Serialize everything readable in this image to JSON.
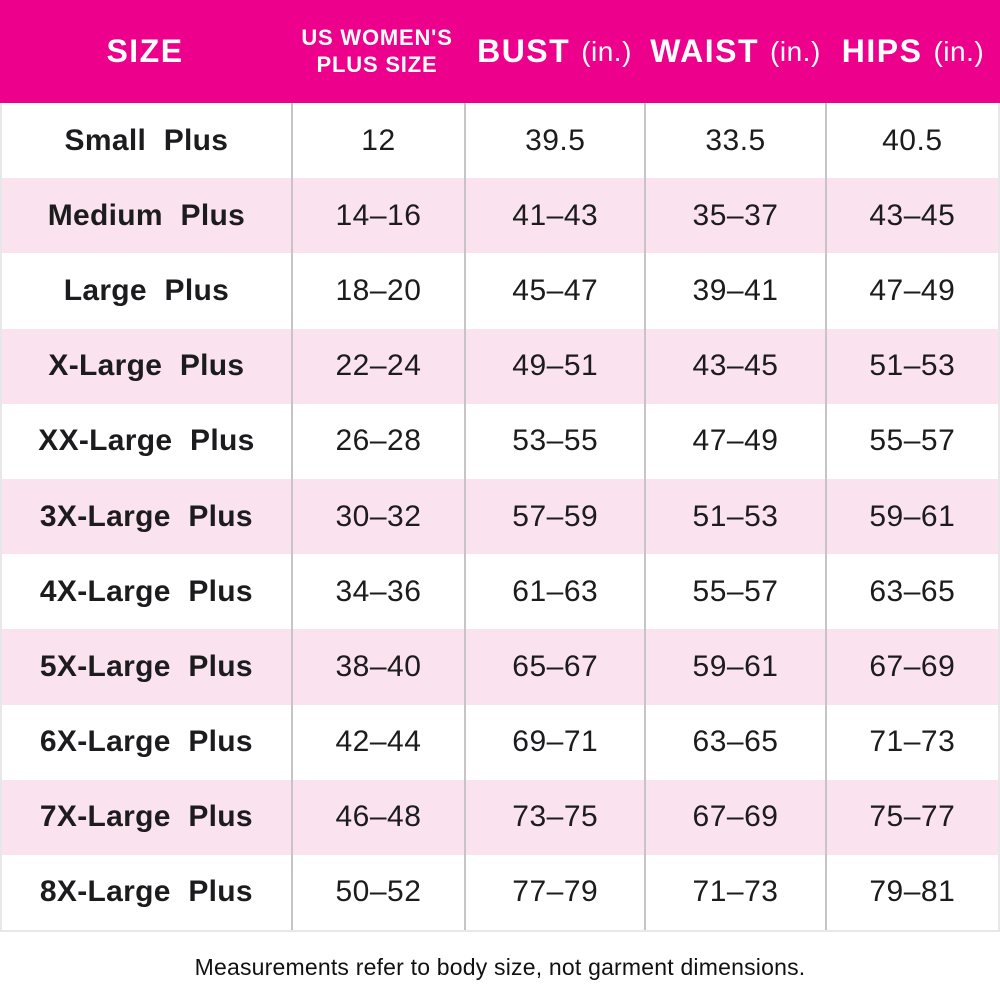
{
  "header": {
    "size_label": "SIZE",
    "us_plus_line1": "US WOMEN'S",
    "us_plus_line2": "PLUS SIZE",
    "bust_label": "BUST",
    "waist_label": "WAIST",
    "hips_label": "HIPS",
    "unit_label": "(in.)"
  },
  "chart_data": {
    "type": "table",
    "columns": [
      "SIZE",
      "US WOMEN'S PLUS SIZE",
      "BUST (in.)",
      "WAIST (in.)",
      "HIPS (in.)"
    ],
    "rows": [
      [
        "Small Plus",
        "12",
        "39.5",
        "33.5",
        "40.5"
      ],
      [
        "Medium Plus",
        "14–16",
        "41–43",
        "35–37",
        "43–45"
      ],
      [
        "Large Plus",
        "18–20",
        "45–47",
        "39–41",
        "47–49"
      ],
      [
        "X-Large Plus",
        "22–24",
        "49–51",
        "43–45",
        "51–53"
      ],
      [
        "XX-Large Plus",
        "26–28",
        "53–55",
        "47–49",
        "55–57"
      ],
      [
        "3X-Large Plus",
        "30–32",
        "57–59",
        "51–53",
        "59–61"
      ],
      [
        "4X-Large Plus",
        "34–36",
        "61–63",
        "55–57",
        "63–65"
      ],
      [
        "5X-Large Plus",
        "38–40",
        "65–67",
        "59–61",
        "67–69"
      ],
      [
        "6X-Large Plus",
        "42–44",
        "69–71",
        "63–65",
        "71–73"
      ],
      [
        "7X-Large Plus",
        "46–48",
        "73–75",
        "67–69",
        "75–77"
      ],
      [
        "8X-Large Plus",
        "50–52",
        "77–79",
        "71–73",
        "79–81"
      ]
    ],
    "note": "Measurements refer to body size, not garment dimensions."
  },
  "colors": {
    "header_bg": "#EC008C",
    "header_text": "#FFFFFF",
    "row_bg": "#FFFFFF",
    "row_alt_bg": "#FAE3EF",
    "divider": "#C7C3C6",
    "outer_border": "#E7E7E7",
    "text": "#1C1C1E"
  }
}
